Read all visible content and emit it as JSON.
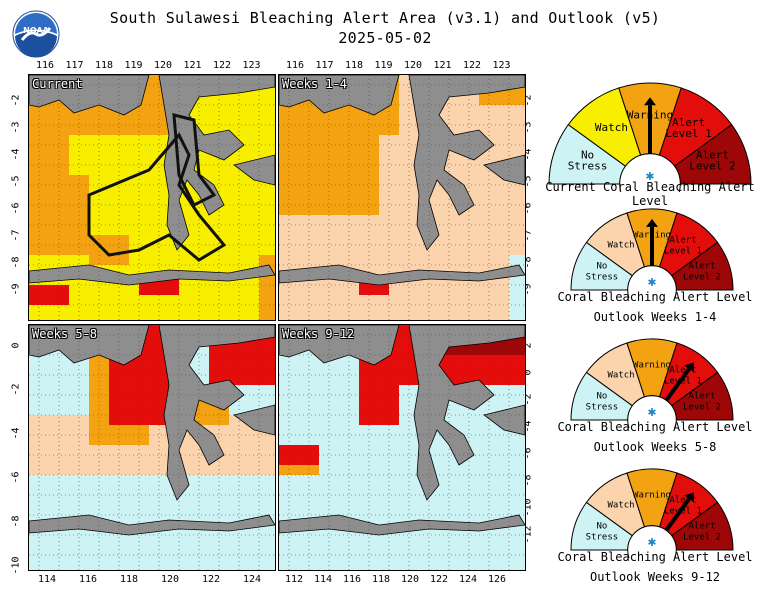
{
  "title": "South Sulawesi Bleaching Alert Area (v3.1) and Outlook (v5)",
  "date": "2025-05-02",
  "logo_text": "NOAA",
  "panels": [
    {
      "label": "Current",
      "top_ticks": [
        "116",
        "117",
        "118",
        "119",
        "120",
        "121",
        "122",
        "123"
      ]
    },
    {
      "label": "Weeks 1-4",
      "top_ticks": [
        "116",
        "117",
        "118",
        "119",
        "120",
        "121",
        "122",
        "123"
      ]
    },
    {
      "label": "Weeks 5-8"
    },
    {
      "label": "Weeks 9-12"
    }
  ],
  "left_axis_top": [
    "2",
    "3",
    "4",
    "5",
    "6",
    "7",
    "8",
    "9"
  ],
  "left_axis_top_prefix": [
    "-",
    "-",
    "-",
    "-",
    "-",
    "-",
    "-",
    "-"
  ],
  "right_axis_top": [
    "-2",
    "-3",
    "-4",
    "-5",
    "-6",
    "-7",
    "-8",
    "-9"
  ],
  "left_axis_bottom": [
    "0",
    "-2",
    "-4",
    "-6",
    "-8",
    "-10"
  ],
  "right_axis_bottom": [
    "2",
    "0",
    "-2",
    "-4",
    "-6",
    "-8",
    "-10",
    "-12"
  ],
  "bottom_ticks_left": [
    "114",
    "116",
    "118",
    "120",
    "122",
    "124"
  ],
  "bottom_ticks_right": [
    "112",
    "114",
    "116",
    "118",
    "120",
    "122",
    "124",
    "126"
  ],
  "gauge_labels": {
    "no_stress": "No Stress",
    "watch": "Watch",
    "warning": "Warning",
    "alert1": "Alert Level 1",
    "alert2": "Alert Level 2"
  },
  "gauges": [
    {
      "caption1": "Current Coral Bleaching Alert Level",
      "caption2": "",
      "level": "warning",
      "style": "current"
    },
    {
      "caption1": "Coral Bleaching Alert Level",
      "caption2": "Outlook Weeks 1-4",
      "level": "warning",
      "style": "outlook"
    },
    {
      "caption1": "Coral Bleaching Alert Level",
      "caption2": "Outlook Weeks 5-8",
      "level": "alert1",
      "style": "outlook"
    },
    {
      "caption1": "Coral Bleaching Alert Level",
      "caption2": "Outlook Weeks 9-12",
      "level": "alert1",
      "style": "outlook"
    }
  ],
  "colors": {
    "no_stress": "#cdf3f5",
    "watch_current": "#f7ee00",
    "watch_outlook": "#fbd3ad",
    "warning": "#f3a312",
    "alert1": "#e30d0b",
    "alert2": "#9e0707",
    "land": "#8e8e8e"
  }
}
